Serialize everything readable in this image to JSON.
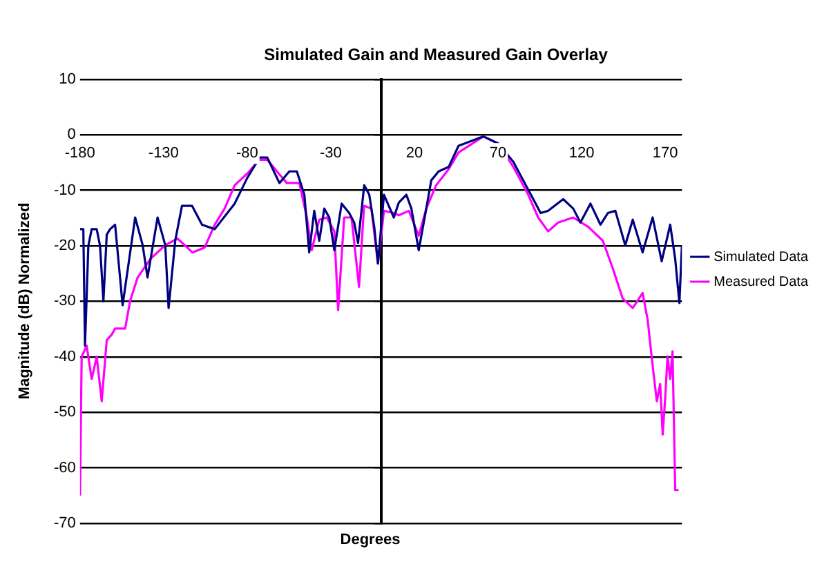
{
  "chart_data": {
    "type": "line",
    "title": "Simulated Gain and Measured Gain Overlay",
    "xlabel": "Degrees",
    "ylabel": "Magnitude (dB) Normalized",
    "xlim": [
      -180,
      180
    ],
    "xticks": [
      -180,
      -130,
      -80,
      -30,
      20,
      70,
      120,
      170
    ],
    "ylim": [
      -70,
      10
    ],
    "yticks": [
      10,
      0,
      -10,
      -20,
      -30,
      -40,
      -50,
      -60,
      -70
    ],
    "grid": "y",
    "legend": "right",
    "series": [
      {
        "name": "Simulated Data",
        "color": "#000080",
        "x": [
          -180,
          -178,
          -177,
          -175,
          -173,
          -170,
          -168,
          -166,
          -164,
          -162,
          -159,
          -154.5,
          -147,
          -142.5,
          -139.6,
          -133.6,
          -129,
          -127,
          -123,
          -119,
          -113,
          -107,
          -99.4,
          -87.5,
          -80,
          -72.6,
          -68,
          -60.7,
          -54.8,
          -50.3,
          -45.8,
          -42.9,
          -39.9,
          -36.9,
          -33.9,
          -30.9,
          -27.9,
          -23.5,
          -19,
          -16,
          -13.7,
          -10,
          -7,
          -4,
          -1.8,
          1.8,
          7.7,
          10.7,
          15.2,
          18.2,
          22.6,
          27.1,
          30.1,
          34.5,
          40.5,
          46.4,
          61.3,
          70.2,
          79.2,
          88.1,
          95.5,
          100,
          109,
          115,
          119.3,
          125.3,
          131.3,
          135.7,
          140.2,
          146.1,
          150.6,
          156.5,
          162.5,
          167.9,
          173,
          176,
          178.5,
          180
        ],
        "values": [
          -17,
          -17,
          -38,
          -20,
          -17,
          -17,
          -20,
          -30,
          -18,
          -17,
          -16.2,
          -30.7,
          -14.9,
          -19.9,
          -25.7,
          -14.9,
          -19.9,
          -31.2,
          -19,
          -12.8,
          -12.8,
          -16.2,
          -17,
          -12.4,
          -7.8,
          -4.1,
          -4.1,
          -8.7,
          -6.6,
          -6.6,
          -10.8,
          -21.2,
          -13.7,
          -19.1,
          -13.3,
          -14.9,
          -20.8,
          -12.4,
          -14.1,
          -15.8,
          -19.5,
          -9.1,
          -10.8,
          -16.6,
          -23.2,
          -10.8,
          -14.9,
          -12.2,
          -10.8,
          -13.3,
          -20.8,
          -13.3,
          -8.2,
          -6.6,
          -5.8,
          -2,
          -0.3,
          -1.6,
          -4.9,
          -9.9,
          -14.1,
          -13.7,
          -11.6,
          -13.3,
          -15.8,
          -12.4,
          -16.2,
          -14.1,
          -13.7,
          -19.9,
          -15.3,
          -21.2,
          -14.9,
          -22.8,
          -16.2,
          -22.4,
          -30.3,
          -19.9
        ]
      },
      {
        "name": "Measured Data",
        "color": "#ff00ff",
        "x": [
          -180,
          -179,
          -176,
          -173,
          -170,
          -167,
          -164,
          -161,
          -159,
          -153,
          -150,
          -145.5,
          -138,
          -129,
          -121.7,
          -117.3,
          -112.8,
          -105.4,
          -99.4,
          -93.5,
          -87.5,
          -80,
          -72.6,
          -68,
          -62.2,
          -56.3,
          -48.8,
          -44.3,
          -41.4,
          -36.9,
          -32.4,
          -27.9,
          -25.6,
          -22,
          -17.6,
          -13.1,
          -10.1,
          -5.7,
          -1.8,
          1.8,
          7.7,
          10.7,
          16.7,
          22.6,
          27.1,
          33,
          40.5,
          46.4,
          61.3,
          70.2,
          79.2,
          88.1,
          94,
          100,
          106,
          115,
          124,
          132.7,
          138.7,
          144.6,
          150.6,
          156.5,
          159.5,
          162.5,
          165,
          167,
          168.5,
          170,
          171.4,
          173,
          174.4,
          176,
          178
        ],
        "values": [
          -65,
          -40,
          -38,
          -44,
          -40,
          -48,
          -37,
          -36,
          -34.9,
          -34.9,
          -29.9,
          -25.7,
          -22.4,
          -19.9,
          -18.7,
          -19.9,
          -21.2,
          -20.3,
          -16.2,
          -13.3,
          -9.1,
          -7,
          -4.5,
          -4.5,
          -6.6,
          -8.7,
          -8.7,
          -14.9,
          -20.8,
          -15.3,
          -14.9,
          -17.4,
          -31.6,
          -14.9,
          -14.9,
          -27.4,
          -12.8,
          -13.3,
          -23.2,
          -13.7,
          -14.1,
          -14.5,
          -13.7,
          -18.2,
          -13.3,
          -9.1,
          -6.2,
          -3.2,
          -0.3,
          -1.6,
          -5.8,
          -10.8,
          -14.9,
          -17.4,
          -15.8,
          -14.9,
          -16.6,
          -19.1,
          -24.1,
          -29.5,
          -31.2,
          -28.5,
          -33.3,
          -41.6,
          -48,
          -44.9,
          -54,
          -47.4,
          -39.9,
          -44,
          -39,
          -64,
          -64
        ]
      }
    ]
  }
}
